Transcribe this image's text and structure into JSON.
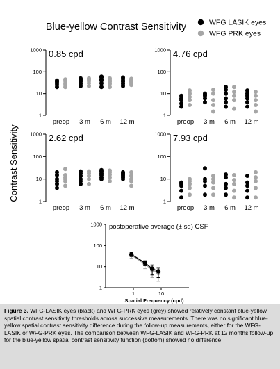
{
  "title": "Blue-yellow Contrast Sensitivity",
  "y_axis_label": "Contrast Sensitivity",
  "legend": [
    {
      "label": "WFG LASIK eyes",
      "color": "#000000"
    },
    {
      "label": "WFG PRK eyes",
      "color": "#a6a6a6"
    }
  ],
  "caption": {
    "lead": "Figure 3.",
    "text": " WFG-LASIK eyes (black) and WFG-PRK eyes (grey) showed relatively constant blue-yellow spatial contrast sensitivity thresholds across successive measurements. There was no significant blue-yellow spatial contrast sensitivity difference during the follow-up measurements, either for the WFG-LASIK or WFG-PRK eyes. The comparison between WFG-LASIK and WFG-PRK at 12 months follow-up for the blue-yellow spatial contrast sensitivity function (bottom) showed no difference."
  },
  "chart_data": [
    {
      "type": "scatter",
      "title": "0.85 cpd",
      "categories": [
        "preop",
        "3 m",
        "6 m",
        "12 m"
      ],
      "yscale": "log",
      "ylim": [
        1,
        1000
      ],
      "yticks": [
        1,
        10,
        100,
        1000
      ],
      "series": [
        {
          "name": "WFG LASIK eyes",
          "color": "#000000",
          "values": [
            [
              20,
              25,
              30,
              35,
              40
            ],
            [
              22,
              28,
              35,
              40,
              45,
              50
            ],
            [
              20,
              30,
              40,
              45,
              55,
              60
            ],
            [
              22,
              28,
              35,
              40,
              48,
              55
            ]
          ]
        },
        {
          "name": "WFG PRK eyes",
          "color": "#a6a6a6",
          "values": [
            [
              20,
              25,
              30,
              38,
              45
            ],
            [
              22,
              30,
              38,
              45,
              50
            ],
            [
              20,
              28,
              35,
              42,
              50
            ],
            [
              25,
              30,
              35,
              42,
              48
            ]
          ]
        }
      ]
    },
    {
      "type": "scatter",
      "title": "4.76 cpd",
      "categories": [
        "preop",
        "3 m",
        "6 m",
        "12 m"
      ],
      "yscale": "log",
      "ylim": [
        1,
        1000
      ],
      "yticks": [
        1,
        10,
        100,
        1000
      ],
      "series": [
        {
          "name": "WFG LASIK eyes",
          "color": "#000000",
          "values": [
            [
              2.5,
              3.5,
              5,
              6,
              8
            ],
            [
              4,
              6,
              8,
              9,
              10
            ],
            [
              2.5,
              4,
              6,
              10,
              15,
              20
            ],
            [
              2.5,
              4,
              6,
              8,
              10,
              14
            ]
          ]
        },
        {
          "name": "WFG PRK eyes",
          "color": "#a6a6a6",
          "values": [
            [
              3,
              5,
              7,
              10,
              14
            ],
            [
              1.5,
              3,
              5,
              10,
              15
            ],
            [
              2,
              5,
              8,
              12,
              20
            ],
            [
              1.5,
              3,
              5,
              8,
              12
            ]
          ]
        }
      ]
    },
    {
      "type": "scatter",
      "title": "2.62 cpd",
      "categories": [
        "preop",
        "3 m",
        "6 m",
        "12 m"
      ],
      "yscale": "log",
      "ylim": [
        1,
        1000
      ],
      "yticks": [
        1,
        10,
        100,
        1000
      ],
      "series": [
        {
          "name": "WFG LASIK eyes",
          "color": "#000000",
          "values": [
            [
              4,
              6,
              8,
              10,
              15,
              20
            ],
            [
              6,
              8,
              10,
              14,
              18,
              22
            ],
            [
              10,
              12,
              15,
              18,
              22,
              25
            ],
            [
              10,
              12,
              14,
              16,
              18,
              20
            ]
          ]
        },
        {
          "name": "WFG PRK eyes",
          "color": "#a6a6a6",
          "values": [
            [
              5,
              8,
              10,
              12,
              15,
              28
            ],
            [
              6,
              10,
              14,
              18,
              22
            ],
            [
              8,
              12,
              16,
              20,
              24
            ],
            [
              5,
              8,
              10,
              14,
              20
            ]
          ]
        }
      ]
    },
    {
      "type": "scatter",
      "title": "7.93 cpd",
      "categories": [
        "preop",
        "3 m",
        "6 m",
        "12 m"
      ],
      "yscale": "log",
      "ylim": [
        1,
        1000
      ],
      "yticks": [
        1,
        10,
        100,
        1000
      ],
      "series": [
        {
          "name": "WFG LASIK eyes",
          "color": "#000000",
          "values": [
            [
              1.5,
              3,
              5,
              6,
              7
            ],
            [
              2,
              5,
              8,
              10,
              30
            ],
            [
              2,
              4,
              6,
              12,
              16
            ],
            [
              1.5,
              3,
              5,
              7,
              14
            ]
          ]
        },
        {
          "name": "WFG PRK eyes",
          "color": "#a6a6a6",
          "values": [
            [
              2,
              4,
              6,
              8,
              10
            ],
            [
              2,
              4,
              7,
              10,
              14
            ],
            [
              1.5,
              3,
              6,
              9,
              15
            ],
            [
              1.5,
              4,
              8,
              12,
              20
            ]
          ]
        }
      ]
    },
    {
      "type": "line",
      "title": "postoperative average (± sd) CSF",
      "xlabel": "Spatial Frequency (cpd)",
      "xscale": "log",
      "xlim": [
        0.1,
        100
      ],
      "xticks": [
        1,
        10
      ],
      "yscale": "log",
      "ylim": [
        1,
        1000
      ],
      "yticks": [
        1,
        10,
        100,
        1000
      ],
      "series": [
        {
          "name": "WFG LASIK eyes",
          "color": "#000000",
          "x": [
            0.85,
            2.62,
            4.76,
            7.93
          ],
          "y": [
            38,
            15,
            8,
            6
          ],
          "sd": [
            8,
            4,
            4,
            3
          ]
        },
        {
          "name": "WFG PRK eyes",
          "color": "#a6a6a6",
          "x": [
            0.85,
            2.62,
            4.76,
            7.93
          ],
          "y": [
            35,
            13,
            7,
            5
          ],
          "sd": [
            10,
            5,
            4,
            3
          ]
        }
      ]
    }
  ]
}
